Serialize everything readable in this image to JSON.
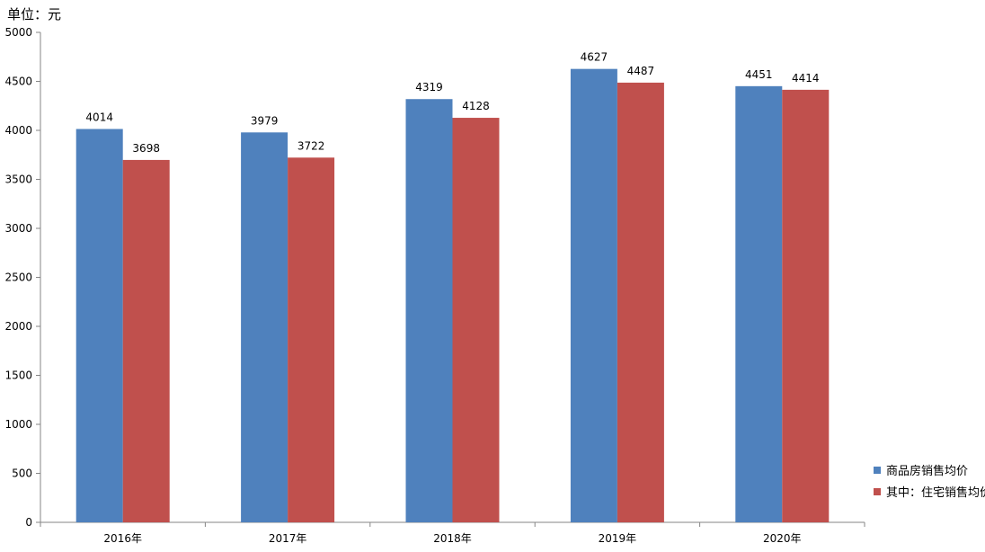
{
  "chart_data": {
    "type": "bar",
    "unit_label": "单位：元",
    "categories": [
      "2016年",
      "2017年",
      "2018年",
      "2019年",
      "2020年"
    ],
    "series": [
      {
        "name": "商品房销售均价",
        "color": "#4F81BD",
        "values": [
          4014,
          3979,
          4319,
          4627,
          4451
        ]
      },
      {
        "name": "其中：住宅销售均价",
        "color": "#C0504D",
        "values": [
          3698,
          3722,
          4128,
          4487,
          4414
        ]
      }
    ],
    "ylim": [
      0,
      5000
    ],
    "yticks": [
      0,
      500,
      1000,
      1500,
      2000,
      2500,
      3000,
      3500,
      4000,
      4500,
      5000
    ],
    "grid": false,
    "legend_position": "right-bottom"
  }
}
